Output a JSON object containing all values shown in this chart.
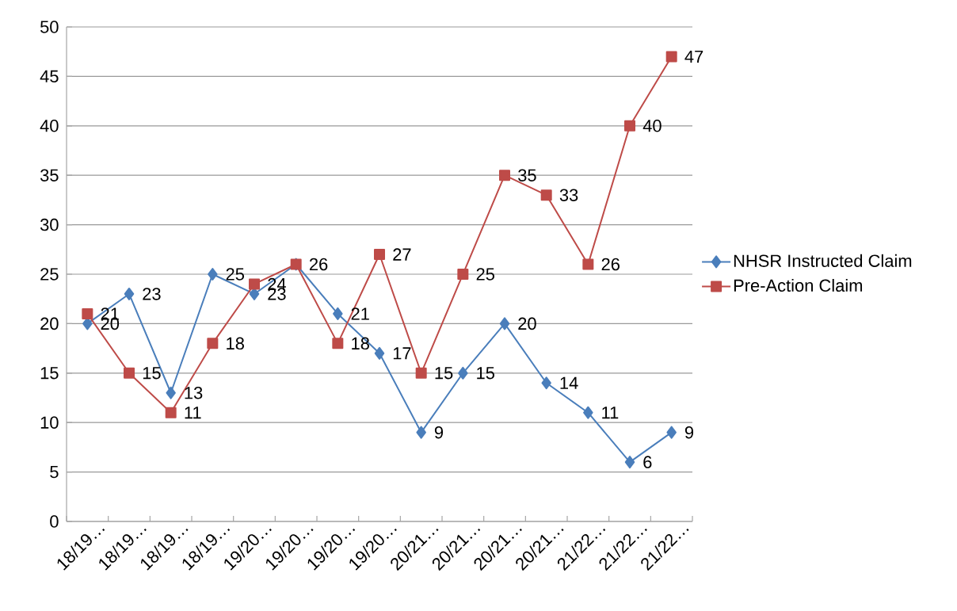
{
  "chart_data": {
    "type": "line",
    "categories": [
      "18/19…",
      "18/19…",
      "18/19…",
      "18/19…",
      "19/20…",
      "19/20…",
      "19/20…",
      "19/20…",
      "20/21…",
      "20/21…",
      "20/21…",
      "20/21…",
      "21/22…",
      "21/22…",
      "21/22…"
    ],
    "series": [
      {
        "name": "NHSR Instructed Claim",
        "color": "#4a7ebb",
        "marker": "diamond",
        "values": [
          20,
          23,
          13,
          25,
          23,
          26,
          21,
          17,
          9,
          15,
          20,
          14,
          11,
          6,
          9
        ],
        "value_labels": [
          "20",
          "23",
          "13",
          "25",
          "23",
          null,
          "21",
          "17",
          "9",
          "15",
          "20",
          "14",
          "11",
          "6",
          "9"
        ]
      },
      {
        "name": "Pre-Action Claim",
        "color": "#be4b48",
        "marker": "square",
        "values": [
          21,
          15,
          11,
          18,
          24,
          26,
          18,
          27,
          15,
          25,
          35,
          33,
          26,
          40,
          47
        ],
        "value_labels": [
          "21",
          "15",
          "11",
          "18",
          "24",
          "26",
          "18",
          "27",
          "15",
          "25",
          "35",
          "33",
          "26",
          "40",
          "47"
        ]
      }
    ],
    "ylim": [
      0,
      50
    ],
    "yticks": [
      0,
      5,
      10,
      15,
      20,
      25,
      30,
      35,
      40,
      45,
      50
    ],
    "grid": "y",
    "legend": "right"
  }
}
